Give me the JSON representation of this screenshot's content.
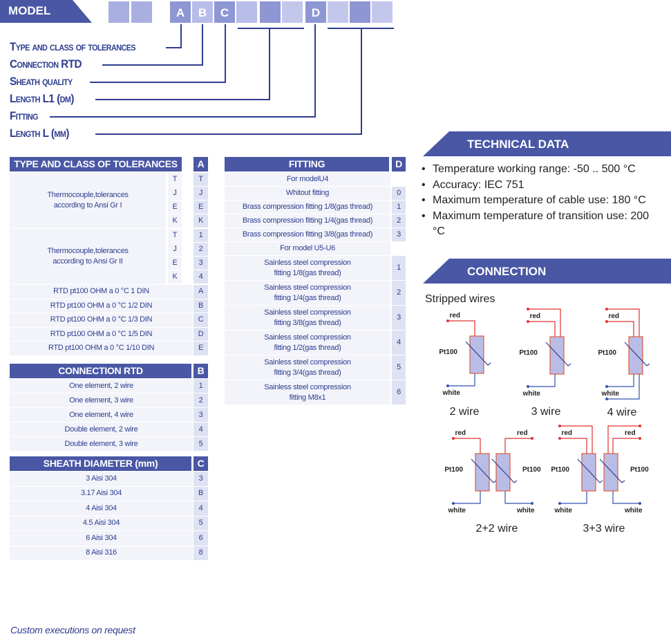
{
  "model": {
    "label": "MODEL",
    "codes": [
      "A",
      "B",
      "C",
      "D"
    ]
  },
  "legend": [
    "Type and class of tolerances",
    "Connection RTD",
    "Sheath quality",
    "Length L1 (dm)",
    "Fitting",
    "Length L (mm)"
  ],
  "type_table": {
    "title": "TYPE AND CLASS OF TOLERANCES",
    "code": "A",
    "groups": [
      {
        "label": [
          "Thermocouple,tolerances",
          "according to Ansi Gr I"
        ],
        "rows": [
          [
            "T",
            "T"
          ],
          [
            "J",
            "J"
          ],
          [
            "E",
            "E"
          ],
          [
            "K",
            "K"
          ]
        ]
      },
      {
        "label": [
          "Thermocouple,tolerances",
          "according to Ansi Gr II"
        ],
        "rows": [
          [
            "T",
            "1"
          ],
          [
            "J",
            "2"
          ],
          [
            "E",
            "3"
          ],
          [
            "K",
            "4"
          ]
        ]
      }
    ],
    "rows": [
      [
        "RTD pt100 OHM a 0 °C 1 DIN",
        "A"
      ],
      [
        "RTD pt100 OHM a 0 °C 1/2 DIN",
        "B"
      ],
      [
        "RTD pt100 OHM a 0 °C 1/3 DIN",
        "C"
      ],
      [
        "RTD pt100 OHM a 0 °C 1/5 DIN",
        "D"
      ],
      [
        "RTD pt100 OHM a 0 °C 1/10 DIN",
        "E"
      ]
    ]
  },
  "connection_table": {
    "title": "CONNECTION RTD",
    "code": "B",
    "rows": [
      [
        "One element, 2 wire",
        "1"
      ],
      [
        "One element, 3 wire",
        "2"
      ],
      [
        "One element, 4 wire",
        "3"
      ],
      [
        "Double element, 2 wire",
        "4"
      ],
      [
        "Double element, 3 wire",
        "5"
      ]
    ]
  },
  "sheath_table": {
    "title": "SHEATH DIAMETER (mm)",
    "code": "C",
    "rows": [
      [
        "3 Aisi 304",
        "3"
      ],
      [
        "3.17 Aisi 304",
        "B"
      ],
      [
        "4 Aisi 304",
        "4"
      ],
      [
        "4.5 Aisi 304",
        "5"
      ],
      [
        "6 Aisi 304",
        "6"
      ],
      [
        "8 Aisi 316",
        "8"
      ]
    ]
  },
  "fitting_table": {
    "title": "FITTING",
    "code": "D",
    "rows": [
      {
        "section": "For modelU4"
      },
      {
        "label": [
          "Whitout fitting"
        ],
        "code": "0"
      },
      {
        "label": [
          "Brass compression fitting 1/8(gas thread)"
        ],
        "code": "1"
      },
      {
        "label": [
          "Brass compression fitting 1/4(gas thread)"
        ],
        "code": "2"
      },
      {
        "label": [
          "Brass compression fitting 3/8(gas thread)"
        ],
        "code": "3"
      },
      {
        "section": "For model U5-U6"
      },
      {
        "label": [
          "Sainless steel compression",
          "fitting 1/8(gas thread)"
        ],
        "code": "1"
      },
      {
        "label": [
          "Sainless steel compression",
          "fitting 1/4(gas thread)"
        ],
        "code": "2"
      },
      {
        "label": [
          "Sainless steel compression",
          "fitting 3/8(gas thread)"
        ],
        "code": "3"
      },
      {
        "label": [
          "Sainless steel compression",
          "fitting 1/2(gas thread)"
        ],
        "code": "4"
      },
      {
        "label": [
          "Sainless steel compression",
          "fitting 3/4(gas thread)"
        ],
        "code": "5"
      },
      {
        "label": [
          "Sainless steel compression",
          "fitting M8x1"
        ],
        "code": "6"
      }
    ]
  },
  "technical": {
    "title": "TECHNICAL DATA",
    "items": [
      "Temperature working range: -50 .. 500 °C",
      "Accuracy: IEC 751",
      "Maximum temperature of cable use: 180 °C",
      "Maximum temperature of transition use: 200 °C"
    ]
  },
  "connection": {
    "title": "CONNECTION",
    "subtitle": "Stripped wires",
    "wire": {
      "red": "red",
      "white": "white",
      "sensor": "Pt100"
    },
    "diagrams": [
      "2 wire",
      "3 wire",
      "4 wire",
      "2+2 wire",
      "3+3 wire"
    ]
  },
  "footer": "Custom executions on request"
}
